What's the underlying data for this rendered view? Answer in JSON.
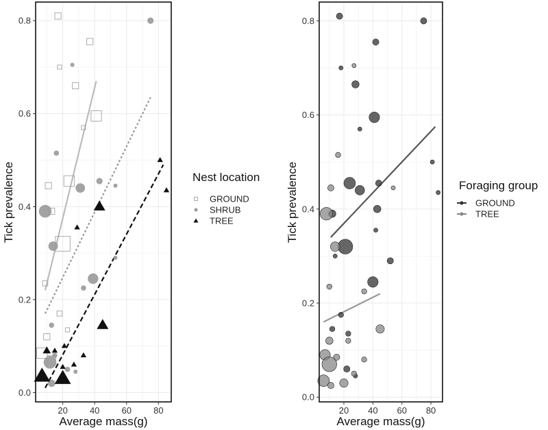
{
  "chart_data": [
    {
      "type": "scatter",
      "panel": "left",
      "xlabel": "Average mass(g)",
      "ylabel": "Tick prevalence",
      "xlim": [
        3,
        88
      ],
      "ylim": [
        -0.02,
        0.84
      ],
      "xticks": [
        "20",
        "40",
        "60",
        "80"
      ],
      "yticks": [
        "0.0",
        "0.2",
        "0.4",
        "0.6",
        "0.8"
      ],
      "xtick_values": [
        20,
        40,
        60,
        80
      ],
      "ytick_values": [
        0.0,
        0.2,
        0.4,
        0.6,
        0.8
      ],
      "legend": {
        "title": "Nest location",
        "entries": [
          {
            "label": "GROUND",
            "shape": "square-open",
            "color": "#aaaaaa"
          },
          {
            "label": "SHRUB",
            "shape": "circle",
            "color": "#999999"
          },
          {
            "label": "TREE",
            "shape": "triangle",
            "color": "#111111"
          }
        ]
      },
      "series": [
        {
          "name": "GROUND",
          "shape": "square-open",
          "color": "#aaaaaa",
          "points": [
            {
              "x": 17,
              "y": 0.81,
              "s": 2
            },
            {
              "x": 37,
              "y": 0.755,
              "s": 2
            },
            {
              "x": 18,
              "y": 0.7,
              "s": 1
            },
            {
              "x": 28,
              "y": 0.66,
              "s": 2
            },
            {
              "x": 41,
              "y": 0.595,
              "s": 4
            },
            {
              "x": 33,
              "y": 0.57,
              "s": 1
            },
            {
              "x": 11,
              "y": 0.445,
              "s": 2
            },
            {
              "x": 13,
              "y": 0.39,
              "s": 2
            },
            {
              "x": 24,
              "y": 0.455,
              "s": 4
            },
            {
              "x": 20,
              "y": 0.32,
              "s": 6
            },
            {
              "x": 9,
              "y": 0.235,
              "s": 1.5
            },
            {
              "x": 18,
              "y": 0.17,
              "s": 1.5
            },
            {
              "x": 23,
              "y": 0.135,
              "s": 1
            },
            {
              "x": 10,
              "y": 0.12,
              "s": 2
            },
            {
              "x": 7,
              "y": 0.085,
              "s": 4
            },
            {
              "x": 13,
              "y": 0.07,
              "s": 3
            }
          ]
        },
        {
          "name": "SHRUB",
          "shape": "circle",
          "color": "#999999",
          "points": [
            {
              "x": 75,
              "y": 0.8,
              "s": 2
            },
            {
              "x": 26,
              "y": 0.705,
              "s": 1
            },
            {
              "x": 16,
              "y": 0.515,
              "s": 1.5
            },
            {
              "x": 31,
              "y": 0.44,
              "s": 3.5
            },
            {
              "x": 43,
              "y": 0.455,
              "s": 2
            },
            {
              "x": 53,
              "y": 0.445,
              "s": 1
            },
            {
              "x": 9,
              "y": 0.39,
              "s": 5
            },
            {
              "x": 14,
              "y": 0.315,
              "s": 3.5
            },
            {
              "x": 53,
              "y": 0.29,
              "s": 1
            },
            {
              "x": 39,
              "y": 0.245,
              "s": 4
            },
            {
              "x": 33,
              "y": 0.225,
              "s": 1.5
            },
            {
              "x": 13,
              "y": 0.145,
              "s": 1.5
            },
            {
              "x": 15,
              "y": 0.08,
              "s": 1.5
            },
            {
              "x": 12,
              "y": 0.065,
              "s": 5
            },
            {
              "x": 23,
              "y": 0.05,
              "s": 1.5
            },
            {
              "x": 28,
              "y": 0.045,
              "s": 1
            },
            {
              "x": 13,
              "y": 0.02,
              "s": 2.5
            }
          ]
        },
        {
          "name": "TREE",
          "shape": "triangle",
          "color": "#111111",
          "points": [
            {
              "x": 81,
              "y": 0.5,
              "s": 1.5
            },
            {
              "x": 85,
              "y": 0.435,
              "s": 1.5
            },
            {
              "x": 43,
              "y": 0.4,
              "s": 4
            },
            {
              "x": 29,
              "y": 0.355,
              "s": 1.5
            },
            {
              "x": 45,
              "y": 0.145,
              "s": 4
            },
            {
              "x": 21,
              "y": 0.1,
              "s": 1.5
            },
            {
              "x": 15,
              "y": 0.09,
              "s": 1.5
            },
            {
              "x": 10,
              "y": 0.09,
              "s": 2.5
            },
            {
              "x": 33,
              "y": 0.08,
              "s": 1.5
            },
            {
              "x": 27,
              "y": 0.06,
              "s": 1.5
            },
            {
              "x": 20,
              "y": 0.055,
              "s": 1.5
            },
            {
              "x": 7,
              "y": 0.035,
              "s": 6
            },
            {
              "x": 20,
              "y": 0.03,
              "s": 6
            }
          ]
        }
      ],
      "fit_lines": [
        {
          "name": "GROUND",
          "style": "solid",
          "color": "#bbbbbb",
          "x": [
            9,
            41
          ],
          "y": [
            0.22,
            0.67
          ]
        },
        {
          "name": "SHRUB",
          "style": "dotted",
          "color": "#999999",
          "x": [
            9,
            75
          ],
          "y": [
            0.17,
            0.635
          ]
        },
        {
          "name": "TREE",
          "style": "dashed",
          "color": "#111111",
          "x": [
            9,
            83
          ],
          "y": [
            0.01,
            0.49
          ]
        }
      ]
    },
    {
      "type": "scatter",
      "panel": "right",
      "xlabel": "Average mass(g)",
      "ylabel": "Tick prevalence",
      "xlim": [
        3,
        88
      ],
      "ylim": [
        -0.01,
        0.84
      ],
      "xticks": [
        "20",
        "40",
        "60",
        "80"
      ],
      "yticks": [
        "0.0",
        "0.2",
        "0.4",
        "0.6",
        "0.8"
      ],
      "xtick_values": [
        20,
        40,
        60,
        80
      ],
      "ytick_values": [
        0.0,
        0.2,
        0.4,
        0.6,
        0.8
      ],
      "legend": {
        "title": "Foraging group",
        "entries": [
          {
            "label": "GROUND",
            "color": "#333333"
          },
          {
            "label": "TREE",
            "color": "#888888"
          }
        ]
      },
      "series": [
        {
          "name": "GROUND",
          "color": "#333333",
          "points": [
            {
              "x": 17,
              "y": 0.81,
              "s": 2
            },
            {
              "x": 75,
              "y": 0.8,
              "s": 2
            },
            {
              "x": 42,
              "y": 0.755,
              "s": 2
            },
            {
              "x": 18,
              "y": 0.7,
              "s": 1
            },
            {
              "x": 28,
              "y": 0.665,
              "s": 2.5
            },
            {
              "x": 41,
              "y": 0.595,
              "s": 4
            },
            {
              "x": 31,
              "y": 0.57,
              "s": 1
            },
            {
              "x": 81,
              "y": 0.5,
              "s": 1
            },
            {
              "x": 24,
              "y": 0.455,
              "s": 4.5
            },
            {
              "x": 44,
              "y": 0.455,
              "s": 2
            },
            {
              "x": 31,
              "y": 0.44,
              "s": 3.5
            },
            {
              "x": 85,
              "y": 0.435,
              "s": 1
            },
            {
              "x": 43,
              "y": 0.4,
              "s": 2.5
            },
            {
              "x": 12,
              "y": 0.39,
              "s": 2.5
            },
            {
              "x": 42,
              "y": 0.355,
              "s": 1
            },
            {
              "x": 21,
              "y": 0.32,
              "s": 6
            },
            {
              "x": 14,
              "y": 0.3,
              "s": 1
            },
            {
              "x": 52,
              "y": 0.29,
              "s": 2
            },
            {
              "x": 40,
              "y": 0.245,
              "s": 4
            },
            {
              "x": 18,
              "y": 0.175,
              "s": 1.5
            },
            {
              "x": 12,
              "y": 0.145,
              "s": 1.5
            },
            {
              "x": 23,
              "y": 0.135,
              "s": 1.5
            },
            {
              "x": 22,
              "y": 0.06,
              "s": 2
            },
            {
              "x": 28,
              "y": 0.045,
              "s": 1
            }
          ]
        },
        {
          "name": "TREE",
          "color": "#888888",
          "points": [
            {
              "x": 27,
              "y": 0.705,
              "s": 1
            },
            {
              "x": 16,
              "y": 0.515,
              "s": 1.5
            },
            {
              "x": 11,
              "y": 0.445,
              "s": 2
            },
            {
              "x": 54,
              "y": 0.445,
              "s": 1
            },
            {
              "x": 8,
              "y": 0.39,
              "s": 5
            },
            {
              "x": 14,
              "y": 0.32,
              "s": 3.5
            },
            {
              "x": 10,
              "y": 0.235,
              "s": 1.5
            },
            {
              "x": 34,
              "y": 0.225,
              "s": 1.5
            },
            {
              "x": 45,
              "y": 0.145,
              "s": 3
            },
            {
              "x": 23,
              "y": 0.12,
              "s": 1.5
            },
            {
              "x": 10,
              "y": 0.12,
              "s": 2.5
            },
            {
              "x": 7,
              "y": 0.09,
              "s": 4
            },
            {
              "x": 15,
              "y": 0.085,
              "s": 2
            },
            {
              "x": 34,
              "y": 0.08,
              "s": 1.5
            },
            {
              "x": 10,
              "y": 0.07,
              "s": 6
            },
            {
              "x": 27,
              "y": 0.05,
              "s": 1.5
            },
            {
              "x": 6,
              "y": 0.035,
              "s": 4.5
            },
            {
              "x": 20,
              "y": 0.03,
              "s": 3
            },
            {
              "x": 11,
              "y": 0.025,
              "s": 2
            }
          ]
        }
      ],
      "fit_lines": [
        {
          "name": "GROUND",
          "style": "solid",
          "color": "#555555",
          "x": [
            11,
            83
          ],
          "y": [
            0.34,
            0.575
          ]
        },
        {
          "name": "TREE",
          "style": "solid",
          "color": "#999999",
          "x": [
            6,
            45
          ],
          "y": [
            0.16,
            0.22
          ]
        }
      ]
    }
  ]
}
